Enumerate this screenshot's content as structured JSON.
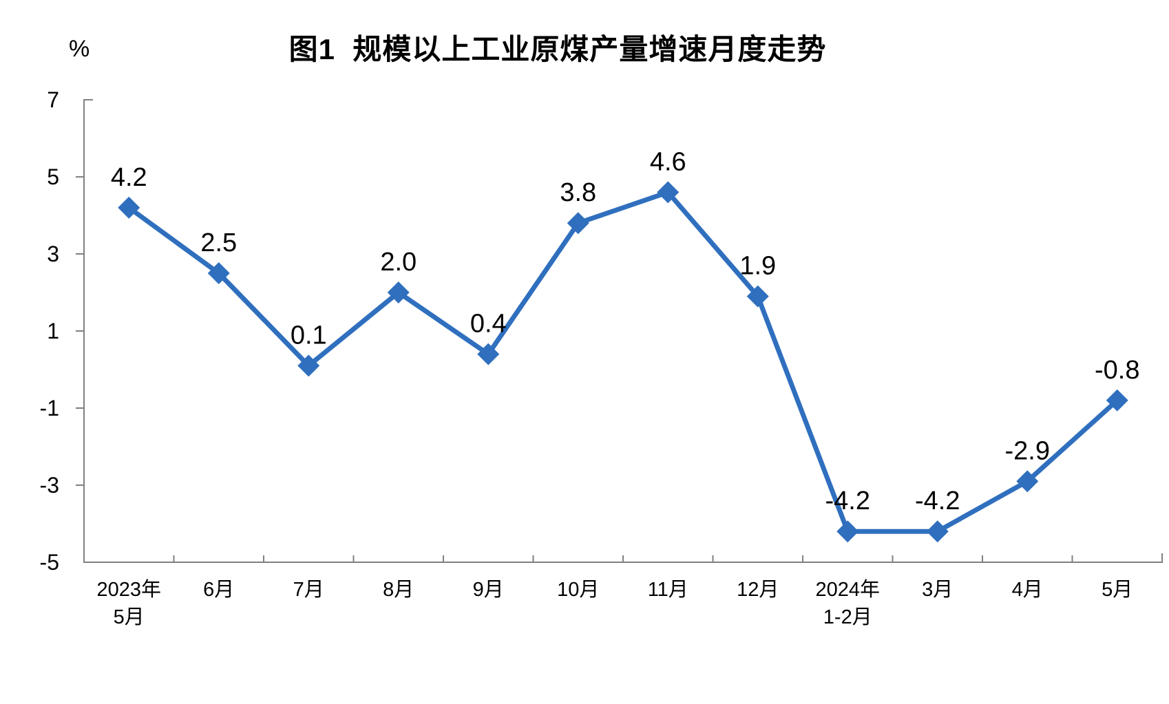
{
  "chart_data": {
    "type": "line",
    "title": "图1  规模以上工业原煤产量增速月度走势",
    "unit": "%",
    "categories": [
      [
        "2023年",
        "5月"
      ],
      [
        "6月"
      ],
      [
        "7月"
      ],
      [
        "8月"
      ],
      [
        "9月"
      ],
      [
        "10月"
      ],
      [
        "11月"
      ],
      [
        "12月"
      ],
      [
        "2024年",
        "1-2月"
      ],
      [
        "3月"
      ],
      [
        "4月"
      ],
      [
        "5月"
      ]
    ],
    "values": [
      4.2,
      2.5,
      0.1,
      2.0,
      0.4,
      3.8,
      4.6,
      1.9,
      -4.2,
      -4.2,
      -2.9,
      -0.8
    ],
    "labels": [
      "4.2",
      "2.5",
      "0.1",
      "2.0",
      "0.4",
      "3.8",
      "4.6",
      "1.9",
      "-4.2",
      "-4.2",
      "-2.9",
      "-0.8"
    ],
    "y_ticks": [
      7,
      5,
      3,
      1,
      -1,
      -3,
      -5
    ],
    "ylim": [
      -5,
      7
    ],
    "xlabel": "",
    "ylabel": "%",
    "grid": "off",
    "legend": "none",
    "marker": "diamond",
    "line_color": "#2F6FBE",
    "axis_color": "#808080",
    "text_color": "#000000",
    "background": "#FFFFFF"
  }
}
